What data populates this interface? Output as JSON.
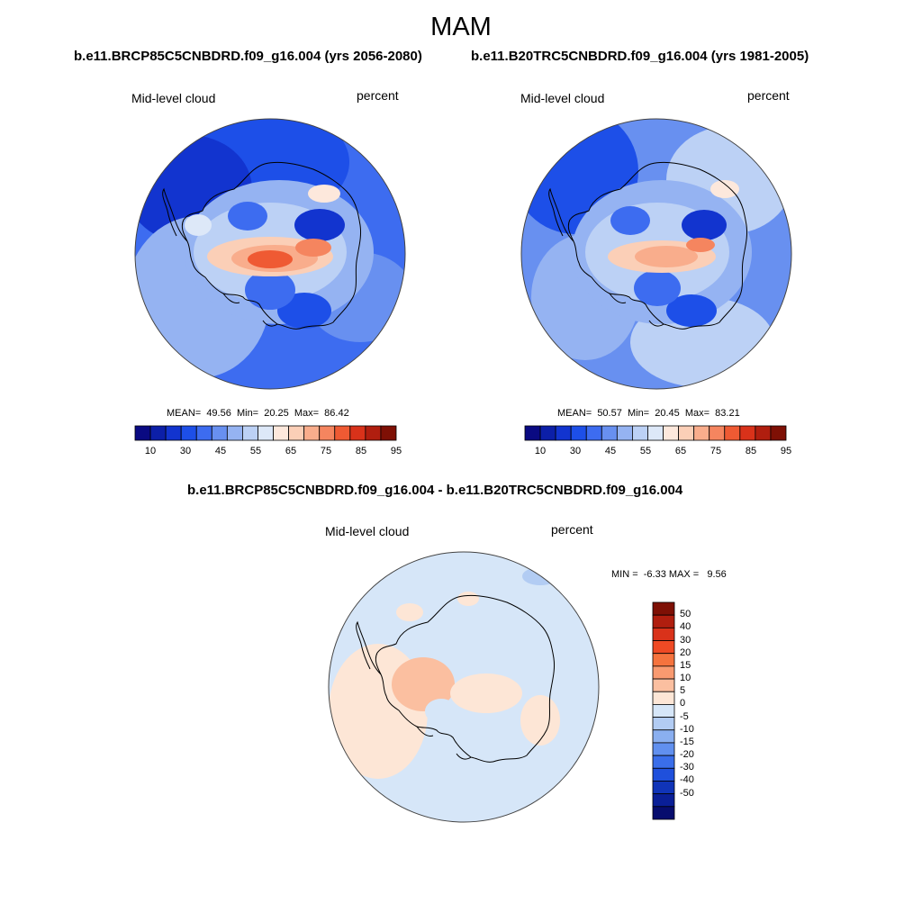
{
  "figure": {
    "title": "MAM",
    "panel_a": {
      "title": "b.e11.BRCP85C5CNBDRD.f09_g16.004 (yrs 2056-2080)",
      "variable": "Mid-level cloud",
      "units": "percent",
      "stats": "MEAN=  49.56  Min=  20.25  Max=  86.42"
    },
    "panel_b": {
      "title": "b.e11.B20TRC5CNBDRD.f09_g16.004 (yrs 1981-2005)",
      "variable": "Mid-level cloud",
      "units": "percent",
      "stats": "MEAN=  50.57  Min=  20.45  Max=  83.21"
    },
    "panel_diff": {
      "title": "b.e11.BRCP85C5CNBDRD.f09_g16.004 - b.e11.B20TRC5CNBDRD.f09_g16.004",
      "variable": "Mid-level cloud",
      "units": "percent",
      "stats": "MIN =  -6.33 MAX =   9.56"
    }
  },
  "chart_data": [
    {
      "type": "heatmap",
      "projection": "south-polar-stereographic",
      "title": "b.e11.BRCP85C5CNBDRD.f09_g16.004 (yrs 2056-2080)",
      "field": "Mid-level cloud",
      "units": "percent",
      "mean": 49.56,
      "min": 20.25,
      "max": 86.42,
      "colorbar_levels": [
        5,
        10,
        15,
        20,
        25,
        30,
        35,
        40,
        45,
        50,
        55,
        60,
        65,
        70,
        75,
        80,
        85,
        90,
        95
      ],
      "colorbar_labels": [
        "10",
        "30",
        "45",
        "55",
        "65",
        "75",
        "85",
        "95"
      ],
      "colorbar_orientation": "horizontal"
    },
    {
      "type": "heatmap",
      "projection": "south-polar-stereographic",
      "title": "b.e11.B20TRC5CNBDRD.f09_g16.004 (yrs 1981-2005)",
      "field": "Mid-level cloud",
      "units": "percent",
      "mean": 50.57,
      "min": 20.45,
      "max": 83.21,
      "colorbar_levels": [
        5,
        10,
        15,
        20,
        25,
        30,
        35,
        40,
        45,
        50,
        55,
        60,
        65,
        70,
        75,
        80,
        85,
        90,
        95
      ],
      "colorbar_labels": [
        "10",
        "30",
        "45",
        "55",
        "65",
        "75",
        "85",
        "95"
      ],
      "colorbar_orientation": "horizontal"
    },
    {
      "type": "heatmap",
      "projection": "south-polar-stereographic",
      "title": "b.e11.BRCP85C5CNBDRD.f09_g16.004 - b.e11.B20TRC5CNBDRD.f09_g16.004",
      "field": "Mid-level cloud",
      "units": "percent",
      "min": -6.33,
      "max": 9.56,
      "colorbar_labels": [
        "50",
        "40",
        "30",
        "20",
        "15",
        "10",
        "5",
        "0",
        "-5",
        "-10",
        "-15",
        "-20",
        "-30",
        "-40",
        "-50"
      ],
      "colorbar_orientation": "vertical"
    }
  ],
  "colors": {
    "seq": [
      "#0a0a82",
      "#0c1fa8",
      "#1234cf",
      "#1d4fe8",
      "#3d6cf0",
      "#6890f0",
      "#95b3f2",
      "#bcd1f5",
      "#dde8f8",
      "#fde8dc",
      "#fbcfb7",
      "#f9ad8c",
      "#f5855f",
      "#ef5a33",
      "#d9321a",
      "#b01e0f",
      "#7e1005"
    ],
    "div": [
      "#7e1005",
      "#b01e0f",
      "#d9321a",
      "#ef4a24",
      "#f5733e",
      "#f99a70",
      "#fbbfa0",
      "#fde6d6",
      "#d6e6f8",
      "#b2ccf3",
      "#8aaff0",
      "#6190ef",
      "#3a6eea",
      "#1f50dc",
      "#1034b8",
      "#0a1f97",
      "#070d6e"
    ]
  }
}
